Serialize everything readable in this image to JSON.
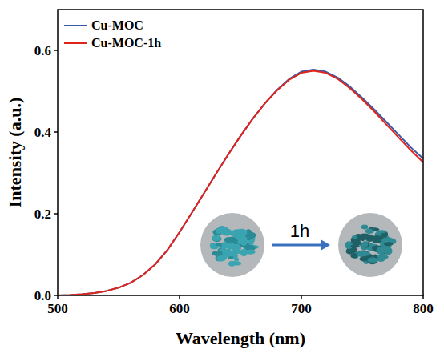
{
  "chart_data": {
    "type": "line",
    "x_label": "Wavelength (nm)",
    "y_label": "Intensity (a.u.)",
    "annotation": "1h",
    "x": [
      500,
      510,
      520,
      530,
      540,
      550,
      560,
      570,
      580,
      590,
      600,
      610,
      620,
      630,
      640,
      650,
      660,
      670,
      680,
      690,
      700,
      710,
      720,
      730,
      740,
      750,
      760,
      770,
      780,
      790,
      800
    ],
    "series": [
      {
        "name": "Cu-MOC",
        "color": "#3a5aa8",
        "values": [
          0.0,
          0.001,
          0.003,
          0.006,
          0.011,
          0.019,
          0.031,
          0.05,
          0.076,
          0.111,
          0.155,
          0.202,
          0.25,
          0.298,
          0.345,
          0.39,
          0.432,
          0.47,
          0.503,
          0.53,
          0.548,
          0.553,
          0.548,
          0.533,
          0.511,
          0.484,
          0.455,
          0.424,
          0.393,
          0.362,
          0.335
        ]
      },
      {
        "name": "Cu-MOC-1h",
        "color": "#e2231a",
        "values": [
          0.0,
          0.001,
          0.003,
          0.006,
          0.011,
          0.019,
          0.031,
          0.05,
          0.076,
          0.111,
          0.155,
          0.202,
          0.25,
          0.298,
          0.345,
          0.39,
          0.432,
          0.47,
          0.502,
          0.528,
          0.545,
          0.55,
          0.545,
          0.53,
          0.507,
          0.48,
          0.45,
          0.418,
          0.386,
          0.355,
          0.326
        ]
      }
    ],
    "xlim": [
      500,
      800
    ],
    "ylim": [
      0,
      0.7
    ],
    "xticks": [
      500,
      600,
      700,
      800
    ],
    "yticks": [
      {
        "value": 0,
        "label": "0.0"
      },
      {
        "value": 0.2,
        "label": "0.2"
      },
      {
        "value": 0.4,
        "label": "0.4"
      },
      {
        "value": 0.6,
        "label": "0.6"
      }
    ],
    "legend": "upper left",
    "grid": false
  }
}
